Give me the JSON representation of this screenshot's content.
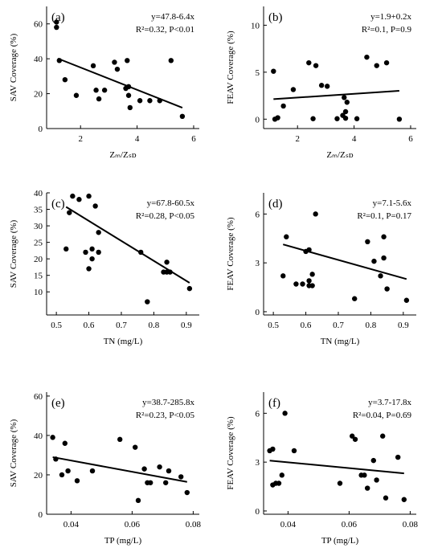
{
  "chart_data": [
    {
      "type": "scatter",
      "panel_label": "(a)",
      "xlabel": "Zₘ/Zₛᴅ",
      "ylabel": "SAV Coverage (%)",
      "xlim": [
        0.8,
        6.2
      ],
      "ylim": [
        0,
        70
      ],
      "xticks": [
        2,
        4,
        6
      ],
      "yticks": [
        0,
        20,
        40,
        60
      ],
      "equation": "y=47.8-6.4x",
      "stats": "R²=0.32, P<0.01",
      "fit": {
        "intercept": 47.8,
        "slope": -6.4,
        "x_range": [
          1.2,
          5.6
        ]
      },
      "x": [
        1.15,
        1.15,
        1.25,
        1.45,
        1.85,
        2.45,
        2.55,
        2.65,
        2.85,
        3.2,
        3.3,
        3.6,
        3.65,
        3.7,
        3.7,
        3.75,
        4.1,
        4.45,
        4.8,
        5.2,
        5.6
      ],
      "y": [
        61,
        58,
        39,
        28,
        19,
        36,
        22,
        17,
        22,
        38,
        34,
        23,
        39,
        24,
        19,
        12,
        16,
        16,
        16,
        39,
        7
      ]
    },
    {
      "type": "scatter",
      "panel_label": "(b)",
      "xlabel": "Zₘ/Zₛᴅ",
      "ylabel": "FEAV Coverage (%)",
      "xlim": [
        0.8,
        6.2
      ],
      "ylim": [
        -1,
        12
      ],
      "xticks": [
        2,
        4,
        6
      ],
      "yticks": [
        0,
        5,
        10
      ],
      "equation": "y=1.9+0.2x",
      "stats": "R²=0.1, P=0.9",
      "fit": {
        "intercept": 1.9,
        "slope": 0.2,
        "x_range": [
          1.15,
          5.6
        ]
      },
      "x": [
        1.15,
        1.2,
        1.3,
        1.5,
        1.85,
        2.4,
        2.55,
        2.65,
        2.85,
        3.05,
        3.4,
        3.6,
        3.65,
        3.7,
        3.7,
        3.75,
        4.1,
        4.45,
        4.8,
        5.15,
        5.6
      ],
      "y": [
        5.1,
        0.0,
        0.15,
        1.4,
        3.15,
        6.0,
        0.05,
        5.7,
        3.6,
        3.5,
        0.05,
        0.4,
        2.3,
        0.1,
        0.8,
        1.8,
        0.05,
        6.6,
        5.7,
        6.0,
        0.0
      ]
    },
    {
      "type": "scatter",
      "panel_label": "(c)",
      "xlabel": "TN (mg/L)",
      "ylabel": "SAV Coverage (%)",
      "xlim": [
        0.47,
        0.94
      ],
      "ylim": [
        3,
        40
      ],
      "xticks": [
        0.5,
        0.6,
        0.7,
        0.8,
        0.9
      ],
      "yticks": [
        10,
        15,
        20,
        25,
        30,
        35,
        40
      ],
      "equation": "y=67.8-60.5x",
      "stats": "R²=0.28, P<0.05",
      "fit": {
        "intercept": 67.8,
        "slope": -60.5,
        "x_range": [
          0.53,
          0.91
        ]
      },
      "x": [
        0.53,
        0.54,
        0.55,
        0.57,
        0.59,
        0.6,
        0.6,
        0.61,
        0.61,
        0.62,
        0.63,
        0.63,
        0.76,
        0.78,
        0.83,
        0.84,
        0.84,
        0.85,
        0.91
      ],
      "y": [
        23,
        34,
        39,
        38,
        22,
        17,
        39,
        20,
        23,
        36,
        28,
        22,
        22,
        7,
        16,
        16,
        19,
        16,
        11
      ]
    },
    {
      "type": "scatter",
      "panel_label": "(d)",
      "xlabel": "TN (mg/L)",
      "ylabel": "FEAV Coverage (%)",
      "xlim": [
        0.47,
        0.94
      ],
      "ylim": [
        -0.2,
        7.3
      ],
      "xticks": [
        0.5,
        0.6,
        0.7,
        0.8,
        0.9
      ],
      "yticks": [
        0,
        3,
        6
      ],
      "equation": "y=7.1-5.6x",
      "stats": "R²=0.1, P=0.17",
      "fit": {
        "intercept": 7.1,
        "slope": -5.6,
        "x_range": [
          0.53,
          0.91
        ]
      },
      "x": [
        0.53,
        0.54,
        0.57,
        0.59,
        0.6,
        0.61,
        0.61,
        0.61,
        0.62,
        0.62,
        0.63,
        0.75,
        0.79,
        0.81,
        0.83,
        0.84,
        0.84,
        0.85,
        0.91
      ],
      "y": [
        2.2,
        4.6,
        1.7,
        1.7,
        3.7,
        3.8,
        1.6,
        1.9,
        2.3,
        1.6,
        6.0,
        0.8,
        4.3,
        3.1,
        2.2,
        4.6,
        3.3,
        1.4,
        0.7
      ]
    },
    {
      "type": "scatter",
      "panel_label": "(e)",
      "xlabel": "TP (mg/L)",
      "ylabel": "SAV Coverage (%)",
      "xlim": [
        0.032,
        0.082
      ],
      "ylim": [
        0,
        62
      ],
      "xticks": [
        0.04,
        0.06,
        0.08
      ],
      "yticks": [
        0,
        20,
        40,
        60
      ],
      "equation": "y=38.7-285.8x",
      "stats": "R²=0.23, P<0.05",
      "fit": {
        "intercept": 38.7,
        "slope": -285.8,
        "x_range": [
          0.034,
          0.078
        ]
      },
      "x": [
        0.034,
        0.035,
        0.037,
        0.038,
        0.039,
        0.042,
        0.047,
        0.056,
        0.061,
        0.062,
        0.064,
        0.065,
        0.066,
        0.069,
        0.071,
        0.072,
        0.076,
        0.078
      ],
      "y": [
        39,
        28,
        20,
        36,
        22,
        17,
        22,
        38,
        34,
        7,
        23,
        16,
        16,
        24,
        16,
        22,
        19,
        11
      ]
    },
    {
      "type": "scatter",
      "panel_label": "(f)",
      "xlabel": "TP (mg/L)",
      "ylabel": "FEAV Coverage (%)",
      "xlim": [
        0.032,
        0.082
      ],
      "ylim": [
        -0.2,
        7.3
      ],
      "xticks": [
        0.04,
        0.06,
        0.08
      ],
      "yticks": [
        0,
        3,
        6
      ],
      "equation": "y=3.7-17.8x",
      "stats": "R²=0.04, P=0.69",
      "fit": {
        "intercept": 3.7,
        "slope": -17.8,
        "x_range": [
          0.034,
          0.078
        ]
      },
      "x": [
        0.034,
        0.035,
        0.035,
        0.036,
        0.037,
        0.038,
        0.039,
        0.042,
        0.057,
        0.061,
        0.062,
        0.064,
        0.065,
        0.066,
        0.068,
        0.069,
        0.071,
        0.072,
        0.076,
        0.078
      ],
      "y": [
        3.7,
        1.6,
        3.8,
        1.7,
        1.7,
        2.2,
        6.0,
        3.7,
        1.7,
        4.6,
        4.4,
        2.2,
        2.2,
        1.4,
        3.1,
        1.9,
        4.6,
        0.8,
        3.3,
        0.7
      ]
    }
  ]
}
